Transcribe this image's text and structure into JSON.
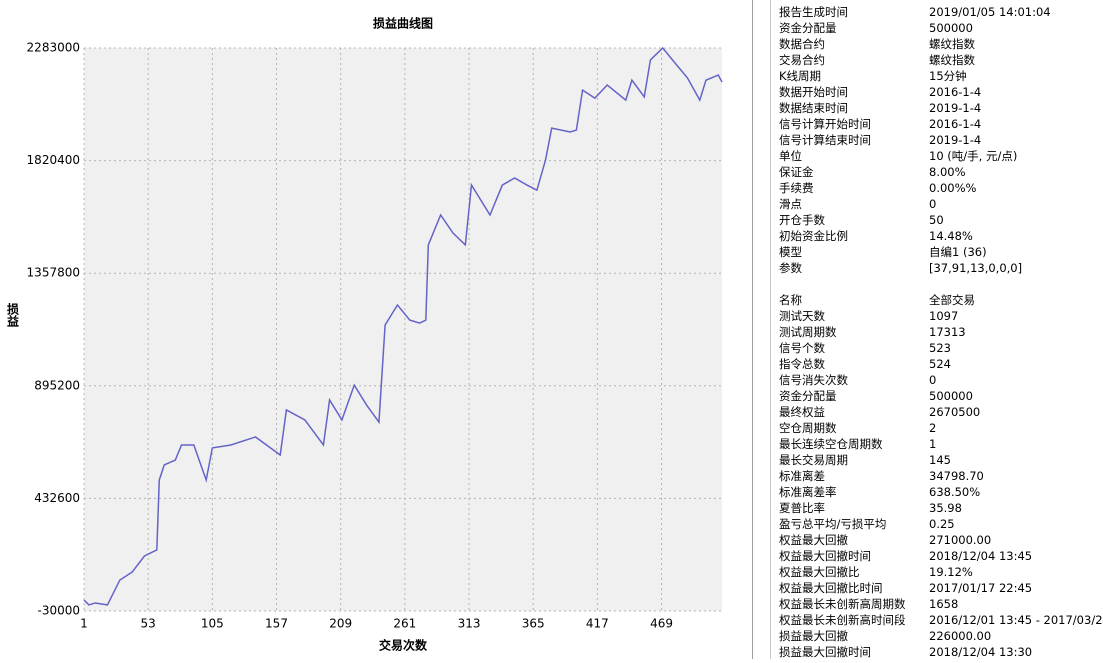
{
  "chart_data": {
    "type": "line",
    "title": "损益曲线图",
    "x_label": "交易次数",
    "y_label": "损益",
    "x": [
      1,
      5,
      10,
      20,
      30,
      40,
      50,
      60,
      62,
      66,
      75,
      80,
      90,
      100,
      105,
      120,
      140,
      160,
      165,
      180,
      195,
      200,
      210,
      220,
      230,
      240,
      245,
      255,
      265,
      273,
      278,
      280,
      290,
      300,
      310,
      315,
      325,
      330,
      340,
      350,
      360,
      368,
      375,
      380,
      395,
      400,
      405,
      415,
      425,
      440,
      445,
      455,
      460,
      470,
      480,
      490,
      500,
      505,
      515,
      518
    ],
    "series": [
      {
        "name": "损益",
        "color": "#6464c8",
        "values": [
          15000,
          -5000,
          3000,
          -5000,
          97000,
          130000,
          196000,
          221000,
          508000,
          570000,
          590000,
          652000,
          652000,
          508000,
          640000,
          652000,
          685000,
          611000,
          796000,
          755000,
          652000,
          837000,
          755000,
          898000,
          816000,
          746000,
          1145000,
          1227000,
          1165000,
          1153000,
          1165000,
          1474000,
          1597000,
          1523000,
          1474000,
          1720000,
          1638000,
          1597000,
          1720000,
          1749000,
          1720000,
          1699000,
          1823000,
          1954000,
          1938000,
          1946000,
          2110000,
          2077000,
          2131000,
          2069000,
          2151000,
          2082000,
          2234000,
          2283000,
          2221000,
          2160000,
          2069000,
          2151000,
          2172000,
          2143000
        ]
      }
    ],
    "xlim": [
      1,
      518
    ],
    "xticks": [
      1,
      53,
      105,
      157,
      209,
      261,
      313,
      365,
      417,
      469
    ],
    "ylim": [
      -30000,
      2283000
    ],
    "yticks": [
      -30000,
      432600,
      895200,
      1357800,
      1820400,
      2283000
    ],
    "grid": true
  },
  "report": {
    "summary": [
      [
        "报告生成时间",
        "2019/01/05 14:01:04"
      ],
      [
        "资金分配量",
        "500000"
      ],
      [
        "数据合约",
        "螺纹指数"
      ],
      [
        "交易合约",
        "螺纹指数"
      ],
      [
        "K线周期",
        "15分钟"
      ],
      [
        "数据开始时间",
        "2016-1-4"
      ],
      [
        "数据结束时间",
        "2019-1-4"
      ],
      [
        "信号计算开始时间",
        "2016-1-4"
      ],
      [
        "信号计算结束时间",
        "2019-1-4"
      ],
      [
        "单位",
        "10 (吨/手, 元/点)"
      ],
      [
        "保证金",
        "8.00%"
      ],
      [
        "手续费",
        "0.00%%"
      ],
      [
        "滑点",
        "0"
      ],
      [
        "开仓手数",
        "50"
      ],
      [
        "初始资金比例",
        "14.48%"
      ],
      [
        "模型",
        "自编1 (36)"
      ],
      [
        "参数",
        "[37,91,13,0,0,0]"
      ]
    ],
    "stats": [
      [
        "名称",
        "全部交易"
      ],
      [
        "测试天数",
        "1097"
      ],
      [
        "测试周期数",
        "17313"
      ],
      [
        "信号个数",
        "523"
      ],
      [
        "指令总数",
        "524"
      ],
      [
        "信号消失次数",
        "0"
      ],
      [
        "资金分配量",
        "500000"
      ],
      [
        "最终权益",
        "2670500"
      ],
      [
        "空仓周期数",
        "2"
      ],
      [
        "最长连续空仓周期数",
        "1"
      ],
      [
        "最长交易周期",
        "145"
      ],
      [
        "标准离差",
        "34798.70"
      ],
      [
        "标准离差率",
        "638.50%"
      ],
      [
        "夏普比率",
        "35.98"
      ],
      [
        "盈亏总平均/亏损平均",
        "0.25"
      ],
      [
        "权益最大回撤",
        "271000.00"
      ],
      [
        "权益最大回撤时间",
        "2018/12/04 13:45"
      ],
      [
        "权益最大回撤比",
        "19.12%"
      ],
      [
        "权益最大回撤比时间",
        "2017/01/17 22:45"
      ],
      [
        "权益最长未创新高周期数",
        "1658"
      ],
      [
        "权益最长未创新高时间段",
        "2016/12/01 13:45 - 2017/03/2"
      ],
      [
        "损益最大回撤",
        "226000.00"
      ],
      [
        "损益最大回撤时间",
        "2018/12/04 13:30"
      ]
    ]
  }
}
